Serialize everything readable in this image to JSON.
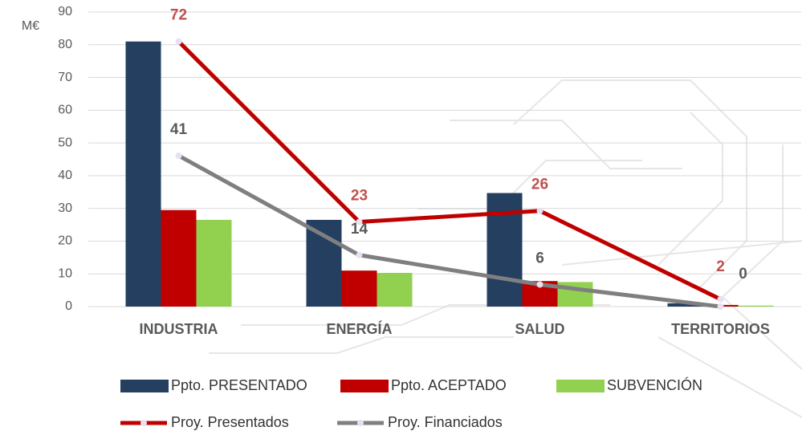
{
  "chart_data": {
    "type": "bar_line",
    "y_label": "M€",
    "categories": [
      "INDUSTRIA",
      "ENERGÍA",
      "SALUD",
      "TERRITORIOS"
    ],
    "ylim": [
      0,
      90
    ],
    "yticks": [
      0,
      10,
      20,
      30,
      40,
      50,
      60,
      70,
      80,
      90
    ],
    "y2lim": [
      0,
      80
    ],
    "grid": true,
    "series": [
      {
        "name": "Ppto. PRESENTADO",
        "type": "bar",
        "color": "#243f60",
        "values": [
          81,
          26.5,
          34.7,
          1
        ]
      },
      {
        "name": "Ppto. ACEPTADO",
        "type": "bar",
        "color": "#c00000",
        "values": [
          29.5,
          11,
          7.8,
          0.5
        ]
      },
      {
        "name": "SUBVENCIÓN",
        "type": "bar",
        "color": "#92d050",
        "values": [
          26.5,
          10.3,
          7.5,
          0.3
        ]
      },
      {
        "name": "Proy. Presentados",
        "type": "line",
        "axis": "y2",
        "color": "#c00000",
        "label_color": "#c0504d",
        "values": [
          72,
          23,
          26,
          2
        ]
      },
      {
        "name": "Proy. Financiados",
        "type": "line",
        "axis": "y2",
        "color": "#7f7f7f",
        "label_color": "#595959",
        "values": [
          41,
          14,
          6,
          0
        ]
      }
    ]
  }
}
